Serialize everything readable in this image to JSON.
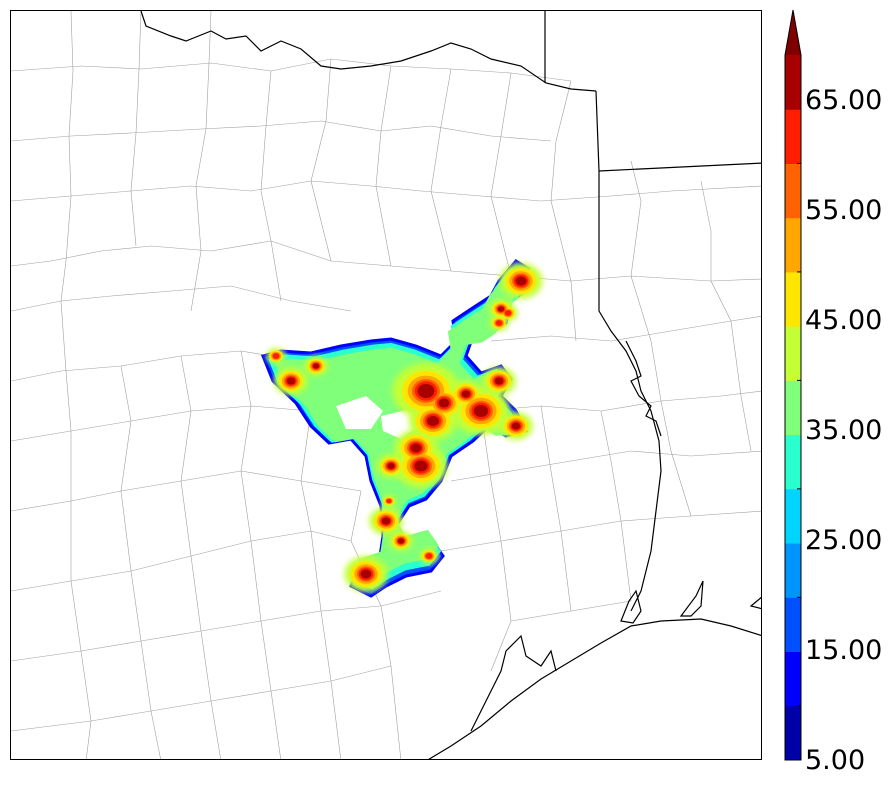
{
  "colorbar": {
    "labels": [
      "65.00",
      "55.00",
      "45.00",
      "35.00",
      "25.00",
      "15.00",
      "5.00"
    ],
    "levels": [
      5,
      10,
      15,
      20,
      25,
      30,
      35,
      40,
      45,
      50,
      55,
      60,
      65,
      70
    ],
    "colors": [
      "#0000a8",
      "#0000ff",
      "#0050ff",
      "#0094ff",
      "#00d4ff",
      "#29ffcf",
      "#7fff7a",
      "#c4ff36",
      "#ffe600",
      "#ffa600",
      "#ff6200",
      "#ff1e00",
      "#a80000"
    ],
    "extend": "max"
  },
  "map": {
    "background": "#ffffff",
    "state_line_color": "#000000",
    "county_line_color": "#9a9a9a"
  }
}
